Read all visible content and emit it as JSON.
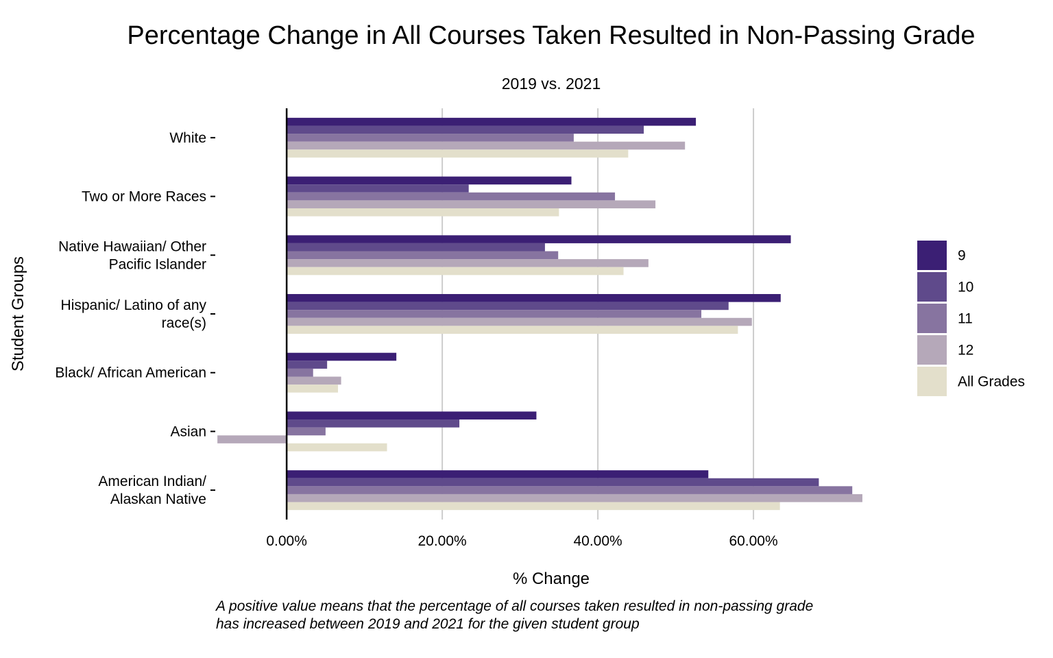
{
  "chart_data": {
    "type": "bar",
    "orientation": "horizontal",
    "title": "Percentage Change in All Courses Taken Resulted in Non-Passing Grade",
    "subtitle": "2019 vs. 2021",
    "xlabel": "% Change",
    "ylabel": "Student Groups",
    "caption_lines": [
      "A positive value means that the percentage of all courses taken resulted in non-passing grade",
      "has increased between 2019 and 2021 for the given student group"
    ],
    "xlim": [
      -9,
      77
    ],
    "x_ticks": [
      0,
      20,
      40,
      60
    ],
    "x_tick_labels": [
      "0.00%",
      "20.00%",
      "40.00%",
      "60.00%"
    ],
    "grid": "vertical major",
    "legend_position": "right",
    "categories": [
      [
        "White"
      ],
      [
        "Two or More Races"
      ],
      [
        "Native Hawaiian/ Other",
        "Pacific Islander"
      ],
      [
        "Hispanic/ Latino of any",
        "race(s)"
      ],
      [
        "Black/ African American"
      ],
      [
        "Asian"
      ],
      [
        "American Indian/",
        "Alaskan Native"
      ]
    ],
    "series": [
      {
        "name": "9",
        "color": "#3b1f74",
        "values": [
          52.6,
          36.6,
          64.8,
          63.5,
          14.1,
          32.1,
          54.2
        ]
      },
      {
        "name": "10",
        "color": "#5f4a8b",
        "values": [
          45.9,
          23.4,
          33.2,
          56.8,
          5.2,
          22.2,
          68.4
        ]
      },
      {
        "name": "11",
        "color": "#8774a0",
        "values": [
          36.9,
          42.2,
          34.9,
          53.3,
          3.4,
          5.0,
          72.7
        ]
      },
      {
        "name": "12",
        "color": "#b5a8b9",
        "values": [
          51.2,
          47.4,
          46.5,
          59.8,
          7.0,
          -8.9,
          74.0
        ]
      },
      {
        "name": "All Grades",
        "color": "#e3dfcb",
        "values": [
          43.9,
          35.0,
          43.3,
          58.0,
          6.6,
          12.9,
          63.4
        ]
      }
    ]
  }
}
